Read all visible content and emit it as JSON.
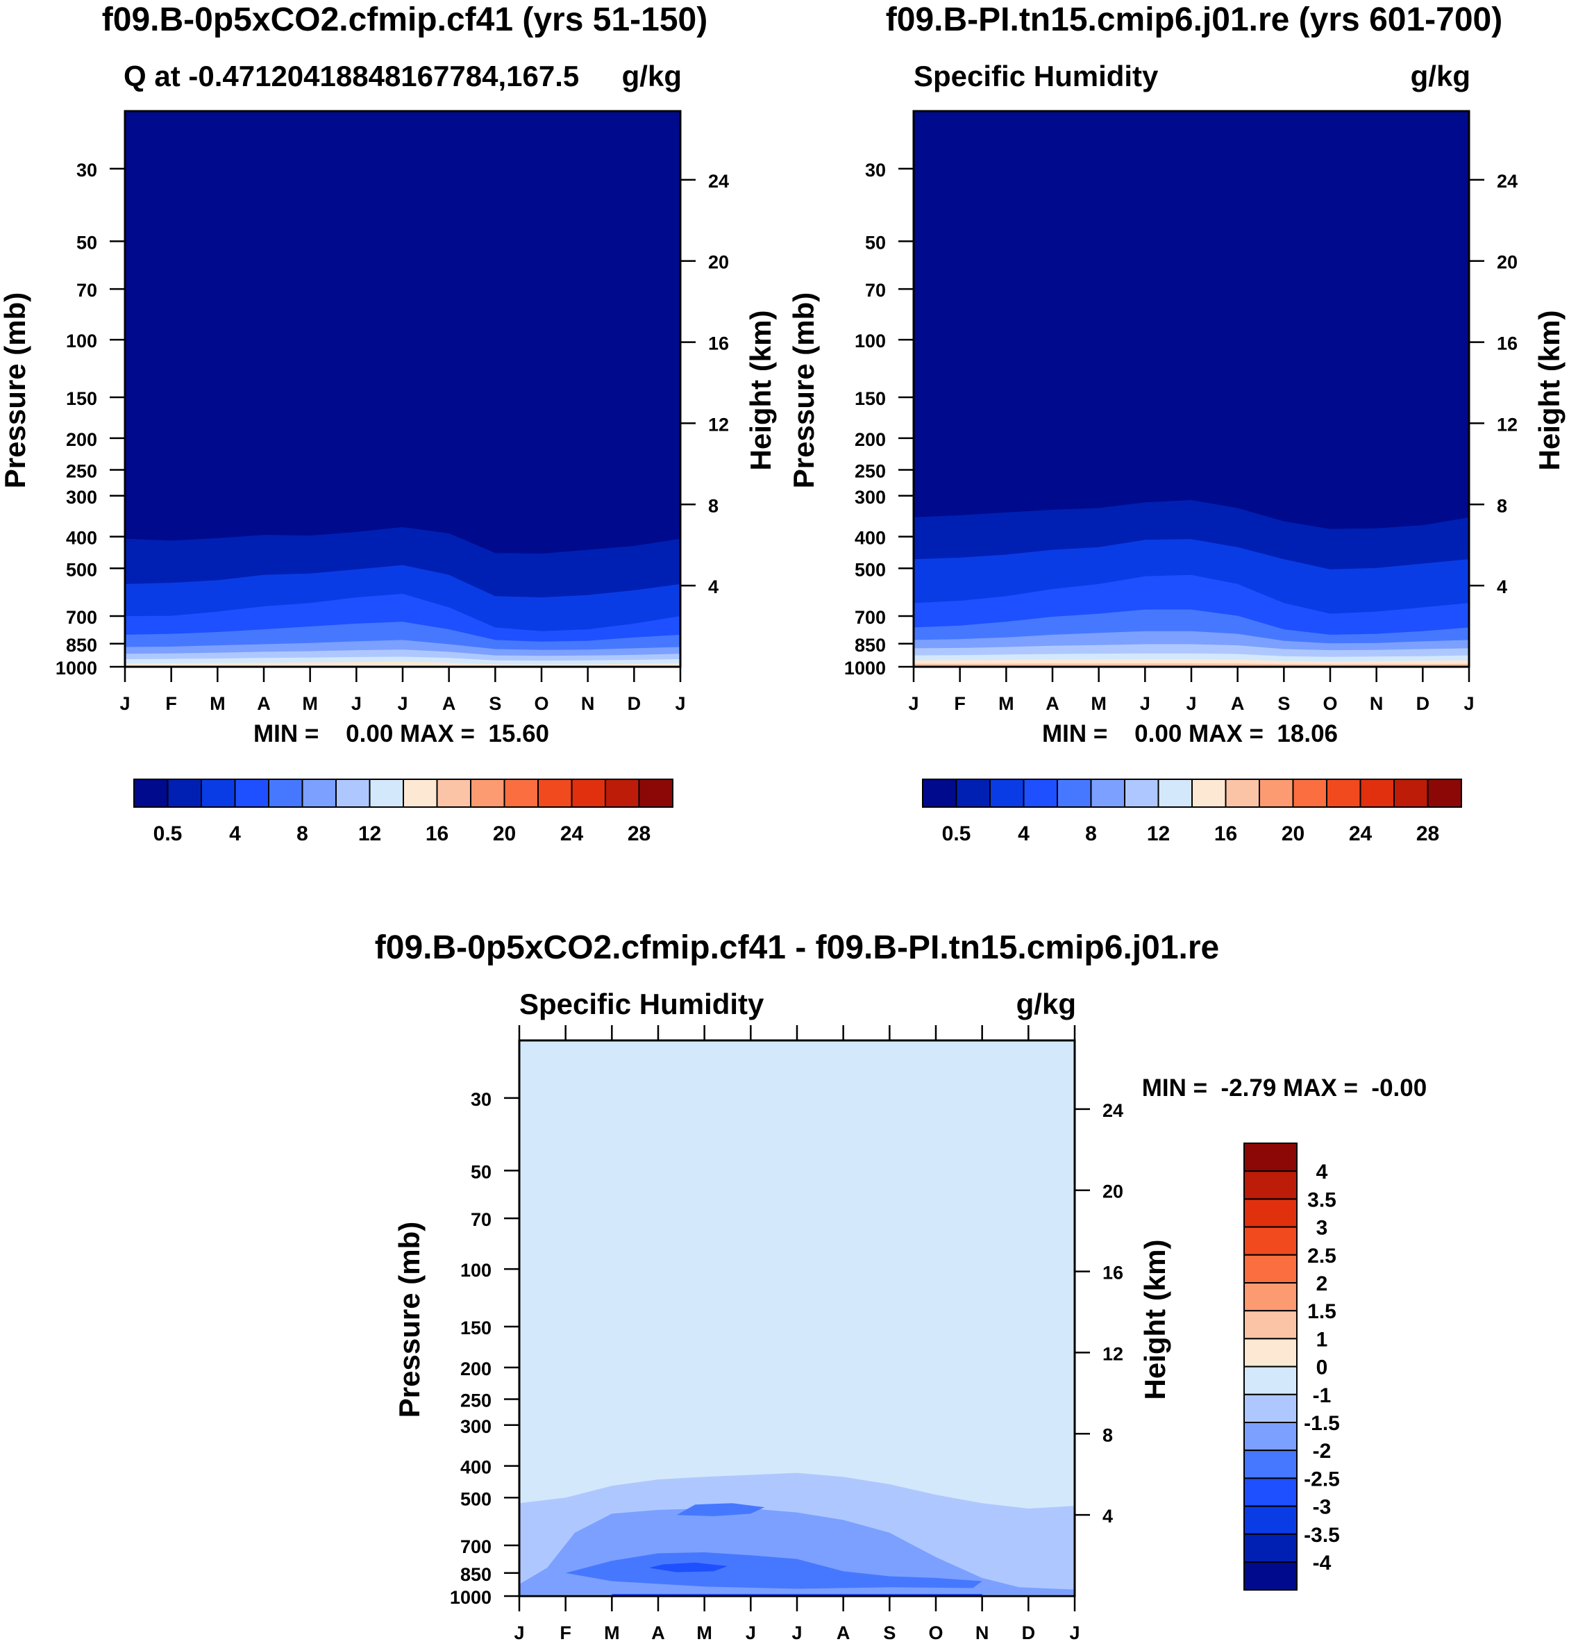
{
  "figure": {
    "panel_a": {
      "title": "f09.B-0p5xCO2.cfmip.cf41 (yrs 51-150)",
      "left_string": "Q at -0.47120418848167784,167.5",
      "right_string": "g/kg",
      "stats": "MIN =    0.00 MAX =  15.60"
    },
    "panel_b": {
      "title": "f09.B-PI.tn15.cmip6.j01.re (yrs 601-700)",
      "left_string": "Specific Humidity",
      "right_string": "g/kg",
      "stats": "MIN =    0.00 MAX =  18.06"
    },
    "panel_c": {
      "title": "f09.B-0p5xCO2.cfmip.cf41 - f09.B-PI.tn15.cmip6.j01.re",
      "left_string": "Specific Humidity",
      "right_string": "g/kg",
      "stats": "MIN =  -2.79 MAX =  -0.00"
    },
    "ylabel_left": "Pressure (mb)",
    "ylabel_right": "Height (km)"
  },
  "chart_data": [
    {
      "type": "heatmap",
      "id": "a",
      "title": "f09.B-0p5xCO2.cfmip.cf41 (yrs 51-150)",
      "xlabel": "",
      "ylabel": "Pressure (mb)",
      "ylabel_right": "Height (km)",
      "x_ticks": [
        "J",
        "F",
        "M",
        "A",
        "M",
        "J",
        "J",
        "A",
        "S",
        "O",
        "N",
        "D",
        "J"
      ],
      "y_ticks": [
        30,
        50,
        70,
        100,
        150,
        200,
        250,
        300,
        400,
        500,
        700,
        850,
        1000
      ],
      "y_right_ticks": [
        4,
        8,
        12,
        16,
        20,
        24
      ],
      "ylim": [
        20,
        1000
      ],
      "y_scale": "log",
      "contour_levels": [
        0.5,
        2,
        4,
        6,
        8,
        10,
        12,
        14,
        16,
        18,
        20,
        22,
        24,
        26,
        28
      ],
      "colorbar_labels": [
        "0.5",
        "4",
        "8",
        "12",
        "16",
        "20",
        "24",
        "28"
      ],
      "min": 0.0,
      "max": 15.6,
      "contour_pressures": [
        [
          407,
          412,
          405,
          396,
          398,
          388,
          375,
          392,
          450,
          452,
          440,
          428,
          407
        ],
        [
          560,
          555,
          545,
          525,
          520,
          505,
          490,
          525,
          610,
          615,
          605,
          585,
          560
        ],
        [
          702,
          700,
          680,
          655,
          640,
          615,
          600,
          660,
          760,
          780,
          770,
          740,
          702
        ],
        [
          800,
          795,
          785,
          770,
          755,
          740,
          730,
          770,
          830,
          840,
          835,
          815,
          800
        ],
        [
          872,
          870,
          862,
          855,
          848,
          838,
          830,
          855,
          885,
          890,
          888,
          880,
          872
        ],
        [
          915,
          912,
          908,
          902,
          898,
          892,
          888,
          902,
          925,
          928,
          926,
          922,
          915
        ],
        [
          950,
          948,
          946,
          942,
          940,
          936,
          934,
          942,
          958,
          960,
          958,
          955,
          950
        ],
        [
          978,
          978,
          976,
          974,
          972,
          970,
          968,
          974,
          985,
          987,
          986,
          982,
          978
        ]
      ]
    },
    {
      "type": "heatmap",
      "id": "b",
      "title": "f09.B-PI.tn15.cmip6.j01.re (yrs 601-700)",
      "xlabel": "",
      "ylabel": "Pressure (mb)",
      "ylabel_right": "Height (km)",
      "x_ticks": [
        "J",
        "F",
        "M",
        "A",
        "M",
        "J",
        "J",
        "A",
        "S",
        "O",
        "N",
        "D",
        "J"
      ],
      "y_ticks": [
        30,
        50,
        70,
        100,
        150,
        200,
        250,
        300,
        400,
        500,
        700,
        850,
        1000
      ],
      "y_right_ticks": [
        4,
        8,
        12,
        16,
        20,
        24
      ],
      "ylim": [
        20,
        1000
      ],
      "y_scale": "log",
      "contour_levels": [
        0.5,
        2,
        4,
        6,
        8,
        10,
        12,
        14,
        16,
        18,
        20,
        22,
        24,
        26,
        28
      ],
      "colorbar_labels": [
        "0.5",
        "4",
        "8",
        "12",
        "16",
        "20",
        "24",
        "28"
      ],
      "min": 0.0,
      "max": 18.06,
      "contour_pressures": [
        [
          350,
          345,
          338,
          332,
          328,
          315,
          310,
          328,
          360,
          380,
          378,
          370,
          350
        ],
        [
          470,
          465,
          455,
          440,
          432,
          410,
          408,
          432,
          470,
          505,
          500,
          485,
          470
        ],
        [
          640,
          630,
          610,
          580,
          560,
          530,
          525,
          560,
          640,
          690,
          680,
          660,
          640
        ],
        [
          760,
          750,
          730,
          705,
          690,
          670,
          670,
          700,
          770,
          800,
          795,
          780,
          760
        ],
        [
          830,
          825,
          815,
          800,
          790,
          780,
          780,
          795,
          835,
          850,
          848,
          838,
          830
        ],
        [
          880,
          878,
          872,
          865,
          860,
          855,
          855,
          862,
          885,
          892,
          890,
          885,
          880
        ],
        [
          925,
          924,
          920,
          916,
          914,
          912,
          912,
          916,
          930,
          935,
          933,
          930,
          925
        ],
        [
          958,
          957,
          955,
          953,
          952,
          951,
          951,
          953,
          962,
          965,
          963,
          961,
          958
        ],
        [
          982,
          982,
          981,
          980,
          980,
          979,
          979,
          980,
          984,
          986,
          985,
          984,
          982
        ]
      ]
    },
    {
      "type": "heatmap",
      "id": "c",
      "title": "f09.B-0p5xCO2.cfmip.cf41 - f09.B-PI.tn15.cmip6.j01.re",
      "xlabel": "",
      "ylabel": "Pressure (mb)",
      "ylabel_right": "Height (km)",
      "x_ticks": [
        "J",
        "F",
        "M",
        "A",
        "M",
        "J",
        "J",
        "A",
        "S",
        "O",
        "N",
        "D",
        "J"
      ],
      "y_ticks": [
        30,
        50,
        70,
        100,
        150,
        200,
        250,
        300,
        400,
        500,
        700,
        850,
        1000
      ],
      "y_right_ticks": [
        4,
        8,
        12,
        16,
        20,
        24
      ],
      "ylim": [
        20,
        1000
      ],
      "y_scale": "log",
      "contour_levels": [
        -4,
        -3.5,
        -3,
        -2.5,
        -2,
        -1.5,
        -1,
        0,
        1,
        1.5,
        2,
        2.5,
        3,
        3.5,
        4
      ],
      "colorbar_labels": [
        "4",
        "3.5",
        "3",
        "2.5",
        "2",
        "1.5",
        "1",
        "0",
        "-1",
        "-1.5",
        "-2",
        "-2.5",
        "-3",
        "-3.5",
        "-4"
      ],
      "min": -2.79,
      "max": -0.0,
      "background_level": "0 to -1",
      "regions": [
        {
          "level": "-1 to -1.5",
          "description": "broad band from about 420 mb to the surface"
        },
        {
          "level": "-1.5 to -2",
          "description": "Feb-Nov, about 520-950 mb"
        },
        {
          "level": "-2 to -2.5",
          "description": "Mar-Sep, about 640-930 mb; small core near 520-560 mb in Apr-Jun"
        },
        {
          "level": "-2.5 to -3",
          "description": "small core near 820 mb in Apr-May"
        }
      ]
    }
  ],
  "colors": {
    "q_palette": [
      "#000a8c",
      "#0020b4",
      "#0a3ce6",
      "#1e50ff",
      "#4678ff",
      "#7ca0ff",
      "#aec8ff",
      "#d4e8fc",
      "#fde8d4",
      "#fcc4a6",
      "#fc9a72",
      "#fa6e40",
      "#f04a1e",
      "#e0300e",
      "#bc1c08",
      "#8c0806"
    ],
    "diff_palette": [
      "#8c0806",
      "#bc1c08",
      "#e0300e",
      "#f04a1e",
      "#fa6e40",
      "#fc9a72",
      "#fcc4a6",
      "#fde8d4",
      "#d4e8fc",
      "#aec8ff",
      "#7ca0ff",
      "#4678ff",
      "#1e50ff",
      "#0a3ce6",
      "#0020b4",
      "#000a8c"
    ]
  }
}
